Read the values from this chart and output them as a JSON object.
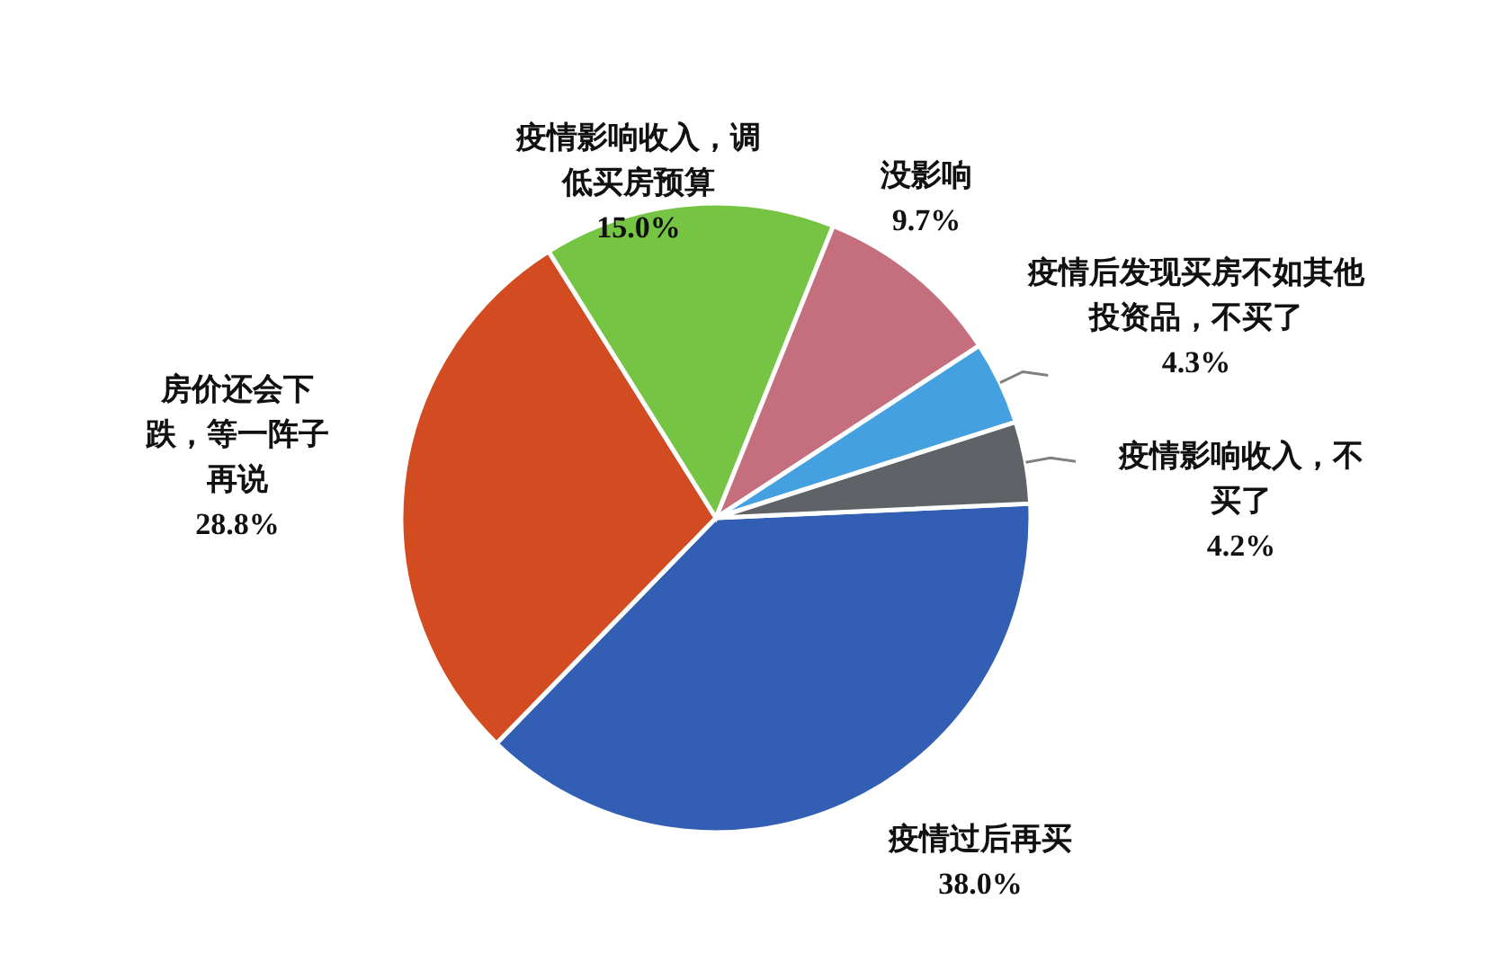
{
  "chart_data": {
    "type": "pie",
    "categories": [
      "疫情过后再买",
      "房价还会下跌，等一阵子再说",
      "疫情影响收入，调低买房预算",
      "没影响",
      "疫情后发现买房不如其他投资品，不买了",
      "疫情影响收入，不买了"
    ],
    "values": [
      38.0,
      28.8,
      15.0,
      9.7,
      4.3,
      4.2
    ],
    "value_labels": [
      "38.0%",
      "28.8%",
      "15.0%",
      "9.7%",
      "4.3%",
      "4.2%"
    ],
    "colors": [
      "#325fb4",
      "#d24b21",
      "#75c443",
      "#c56f7e",
      "#45a0e0",
      "#5f6368"
    ],
    "legend": false
  }
}
